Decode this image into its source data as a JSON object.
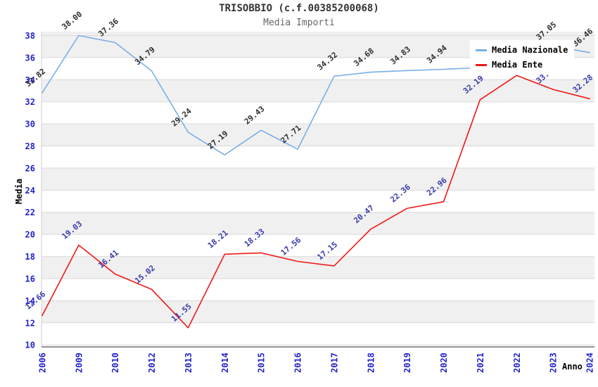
{
  "header": {
    "title": "TRISOBBIO (c.f.00385200068)",
    "subtitle": "Media Importi"
  },
  "legend": {
    "items": [
      {
        "label": "Media Nazionale",
        "color": "#78afe6"
      },
      {
        "label": "Media Ente",
        "color": "#f01818"
      }
    ]
  },
  "axes": {
    "y_title": "Media",
    "x_title": "Anno",
    "y_ticks": [
      10,
      12,
      14,
      16,
      18,
      20,
      22,
      24,
      26,
      28,
      30,
      32,
      34,
      36,
      38
    ],
    "tick_color": "#2222cc"
  },
  "chart_data": {
    "type": "line",
    "title": "TRISOBBIO (c.f.00385200068)",
    "subtitle": "Media Importi",
    "xlabel": "Anno",
    "ylabel": "Media",
    "ylim": [
      9.82,
      38.35
    ],
    "grid": true,
    "legend_position": "top-right",
    "band_color": "#f0f0f0",
    "grid_color": "#d9d9d9",
    "y_axis_color": "#cfcfcf",
    "x_axis_color": "#848484",
    "categories": [
      "2006",
      "2009",
      "2010",
      "2012",
      "2013",
      "2014",
      "2015",
      "2016",
      "2017",
      "2018",
      "2019",
      "2020",
      "2021",
      "2022",
      "2023",
      "2024"
    ],
    "series": [
      {
        "name": "Media Nazionale",
        "color": "#78afe6",
        "label_color": "#303030",
        "values": [
          32.82,
          38.0,
          37.36,
          34.79,
          29.24,
          27.19,
          29.43,
          27.71,
          34.32,
          34.68,
          34.83,
          34.94,
          35.1,
          36.1,
          37.05,
          36.46
        ],
        "labels": [
          "32.82",
          "38.00",
          "37.36",
          "34.79",
          "29.24",
          "27.19",
          "29.43",
          "27.71",
          "34.32",
          "34.68",
          "34.83",
          "34.94",
          null,
          null,
          "37.05",
          "36.46"
        ]
      },
      {
        "name": "Media Ente",
        "color": "#f01818",
        "label_color": "#3a3aae",
        "values": [
          12.66,
          19.03,
          16.41,
          15.02,
          11.55,
          18.21,
          18.33,
          17.56,
          17.15,
          20.47,
          22.36,
          22.96,
          32.19,
          34.38,
          33.12,
          32.28
        ],
        "labels": [
          "12.66",
          "19.03",
          "16.41",
          "15.02",
          "11.55",
          "18.21",
          "18.33",
          "17.56",
          "17.15",
          "20.47",
          "22.36",
          "22.96",
          "32.19",
          null,
          "33.12",
          "32.28"
        ]
      }
    ]
  }
}
